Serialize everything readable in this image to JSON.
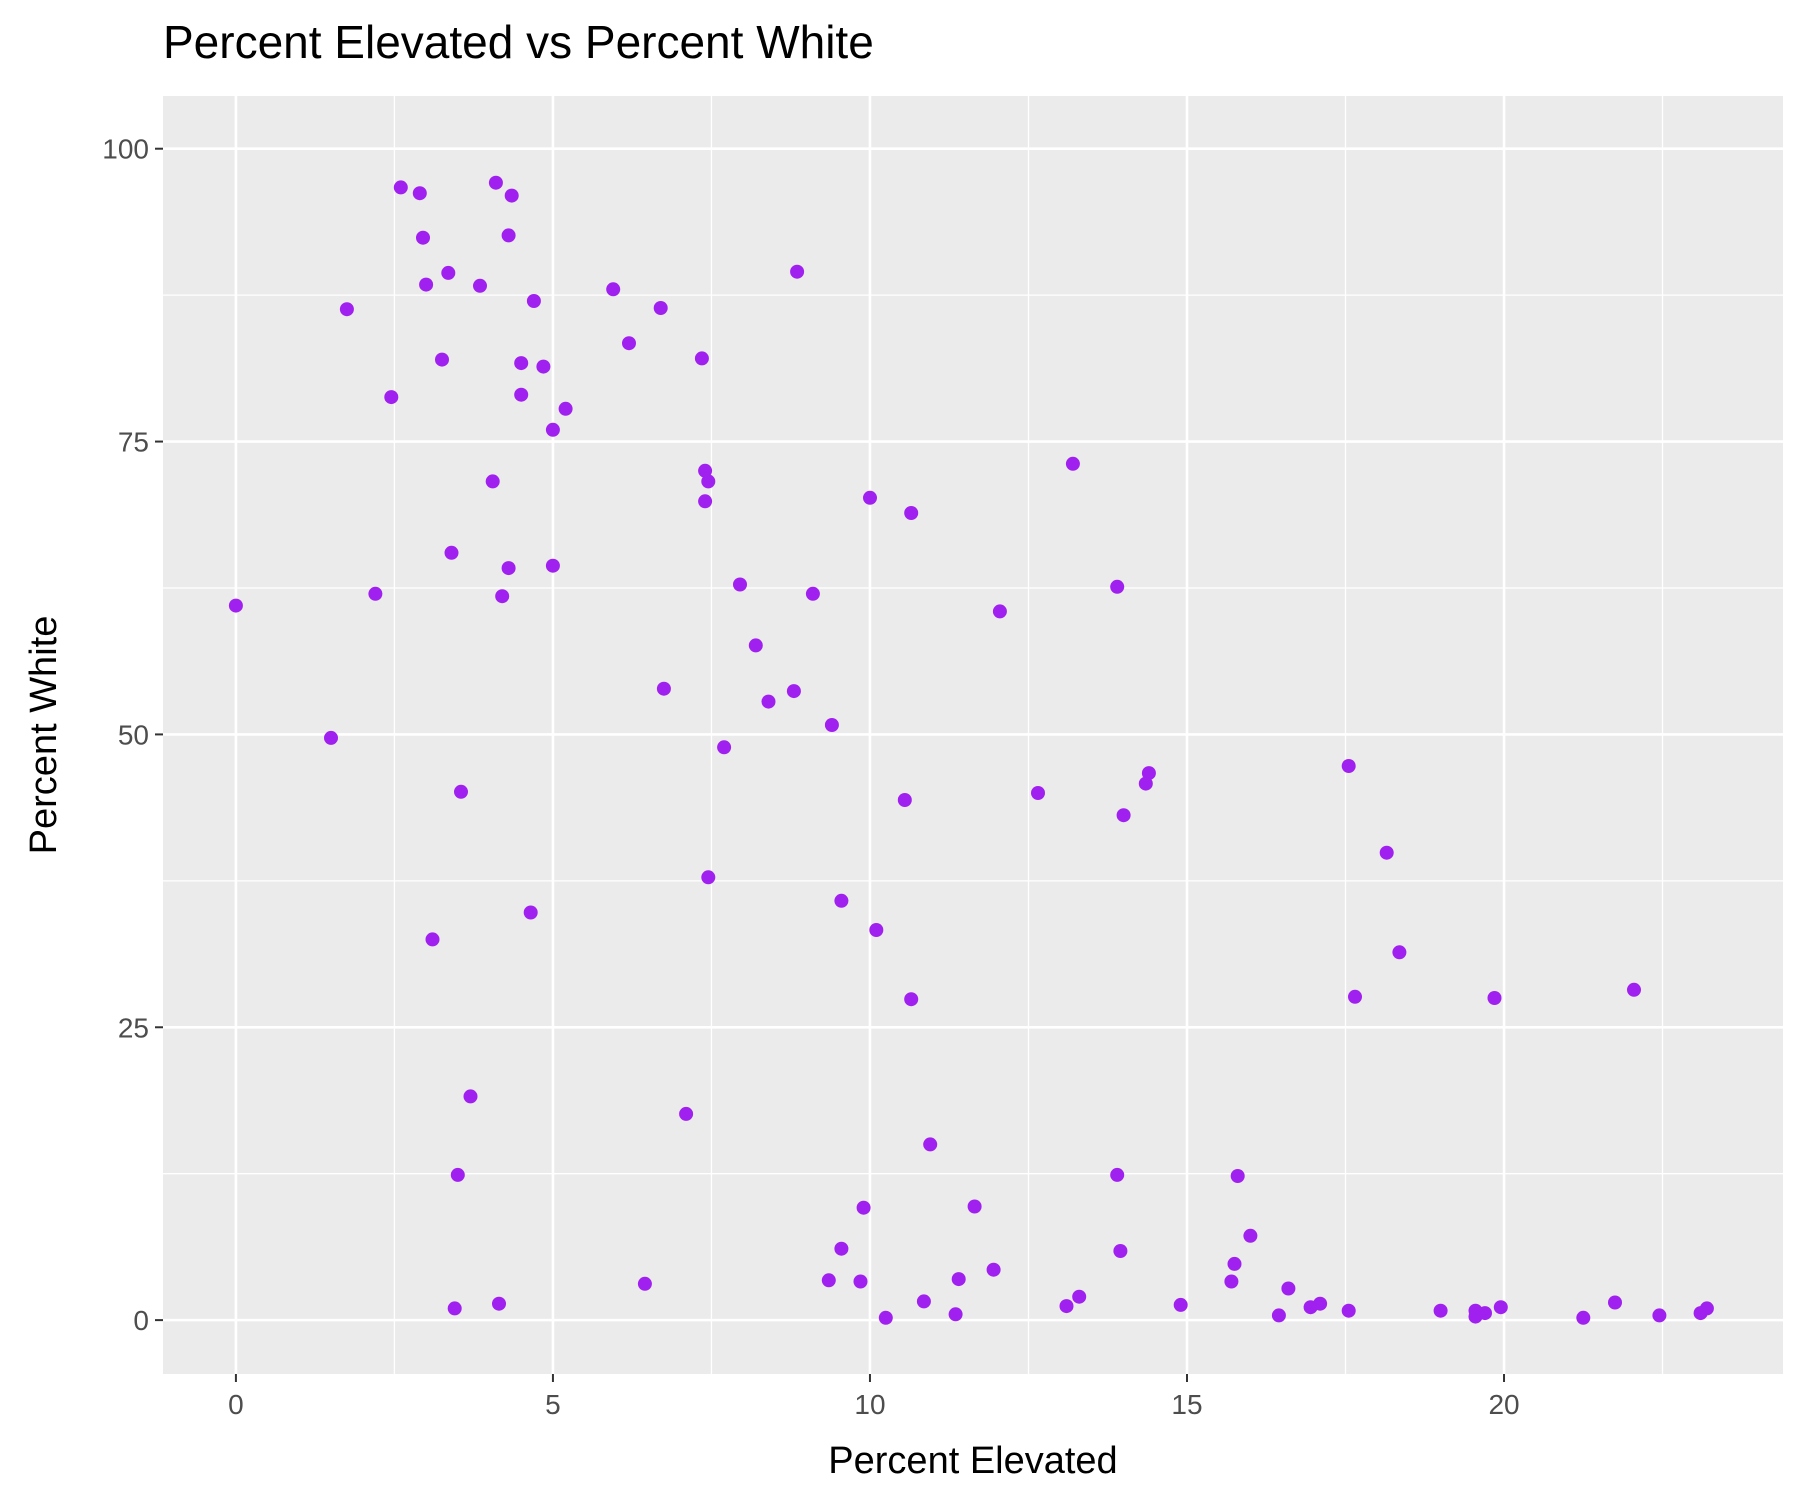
{
  "chart_data": {
    "type": "scatter",
    "title": "Percent Elevated vs Percent White",
    "xlabel": "Percent Elevated",
    "ylabel": "Percent White",
    "xlim": [
      -1.15,
      24.4
    ],
    "ylim": [
      -4.6,
      104.5
    ],
    "x_ticks": [
      0,
      5,
      10,
      15,
      20
    ],
    "x_tick_labels": [
      "0",
      "5",
      "10",
      "15",
      "20"
    ],
    "y_ticks": [
      0,
      25,
      50,
      75,
      100
    ],
    "y_tick_labels": [
      "0",
      "25",
      "50",
      "75",
      "100"
    ],
    "grid": true,
    "legend": "none",
    "colors": {
      "point": "#A020F0",
      "panel_background": "#EBEBEB",
      "grid_major": "#FFFFFF",
      "grid_minor": "#FFFFFF",
      "tick_color": "#333333"
    },
    "series": [
      {
        "points": [
          [
            0.0,
            61.0
          ],
          [
            1.5,
            49.7
          ],
          [
            1.75,
            86.3
          ],
          [
            2.2,
            62.0
          ],
          [
            2.45,
            78.8
          ],
          [
            2.6,
            96.7
          ],
          [
            2.9,
            96.2
          ],
          [
            2.95,
            92.4
          ],
          [
            3.0,
            88.4
          ],
          [
            3.1,
            32.5
          ],
          [
            3.25,
            82.0
          ],
          [
            3.35,
            89.4
          ],
          [
            3.4,
            65.5
          ],
          [
            3.45,
            1.0
          ],
          [
            3.5,
            12.4
          ],
          [
            3.55,
            45.1
          ],
          [
            3.7,
            19.1
          ],
          [
            3.85,
            88.3
          ],
          [
            4.05,
            71.6
          ],
          [
            4.1,
            97.1
          ],
          [
            4.15,
            1.4
          ],
          [
            4.2,
            61.8
          ],
          [
            4.3,
            64.2
          ],
          [
            4.3,
            92.6
          ],
          [
            4.35,
            96.0
          ],
          [
            4.5,
            81.7
          ],
          [
            4.5,
            79.0
          ],
          [
            4.65,
            34.8
          ],
          [
            4.7,
            87.0
          ],
          [
            4.85,
            81.4
          ],
          [
            5.0,
            76.0
          ],
          [
            5.0,
            64.4
          ],
          [
            5.2,
            77.8
          ],
          [
            5.95,
            88.0
          ],
          [
            6.2,
            83.4
          ],
          [
            6.45,
            3.1
          ],
          [
            6.7,
            86.4
          ],
          [
            6.75,
            53.9
          ],
          [
            7.1,
            17.6
          ],
          [
            7.35,
            82.1
          ],
          [
            7.4,
            72.5
          ],
          [
            7.4,
            69.9
          ],
          [
            7.45,
            71.6
          ],
          [
            7.45,
            37.8
          ],
          [
            7.7,
            48.9
          ],
          [
            7.95,
            62.8
          ],
          [
            8.2,
            57.6
          ],
          [
            8.4,
            52.8
          ],
          [
            8.8,
            53.7
          ],
          [
            8.85,
            89.5
          ],
          [
            9.1,
            62.0
          ],
          [
            9.35,
            3.4
          ],
          [
            9.4,
            50.8
          ],
          [
            9.55,
            6.1
          ],
          [
            9.55,
            35.8
          ],
          [
            9.85,
            3.3
          ],
          [
            9.9,
            9.6
          ],
          [
            10.0,
            70.2
          ],
          [
            10.1,
            33.3
          ],
          [
            10.25,
            0.2
          ],
          [
            10.55,
            44.4
          ],
          [
            10.65,
            68.9
          ],
          [
            10.65,
            27.4
          ],
          [
            10.85,
            1.6
          ],
          [
            10.95,
            15.0
          ],
          [
            11.35,
            0.5
          ],
          [
            11.4,
            3.5
          ],
          [
            11.65,
            9.7
          ],
          [
            11.95,
            4.3
          ],
          [
            12.05,
            60.5
          ],
          [
            12.65,
            45.0
          ],
          [
            13.1,
            1.2
          ],
          [
            13.2,
            73.1
          ],
          [
            13.3,
            2.0
          ],
          [
            13.9,
            62.6
          ],
          [
            13.9,
            12.4
          ],
          [
            13.95,
            5.9
          ],
          [
            14.0,
            43.1
          ],
          [
            14.35,
            45.8
          ],
          [
            14.4,
            46.7
          ],
          [
            14.9,
            1.3
          ],
          [
            15.7,
            3.3
          ],
          [
            15.75,
            4.8
          ],
          [
            15.8,
            12.3
          ],
          [
            16.0,
            7.2
          ],
          [
            16.45,
            0.4
          ],
          [
            16.6,
            2.7
          ],
          [
            16.95,
            1.1
          ],
          [
            17.1,
            1.4
          ],
          [
            17.55,
            47.3
          ],
          [
            17.55,
            0.8
          ],
          [
            17.65,
            27.6
          ],
          [
            18.15,
            39.9
          ],
          [
            18.35,
            31.4
          ],
          [
            19.0,
            0.8
          ],
          [
            19.55,
            0.3
          ],
          [
            19.55,
            0.8
          ],
          [
            19.7,
            0.6
          ],
          [
            19.85,
            27.5
          ],
          [
            19.95,
            1.1
          ],
          [
            21.25,
            0.2
          ],
          [
            21.75,
            1.5
          ],
          [
            22.05,
            28.2
          ],
          [
            22.45,
            0.4
          ],
          [
            23.1,
            0.6
          ],
          [
            23.2,
            1.0
          ]
        ]
      }
    ]
  }
}
